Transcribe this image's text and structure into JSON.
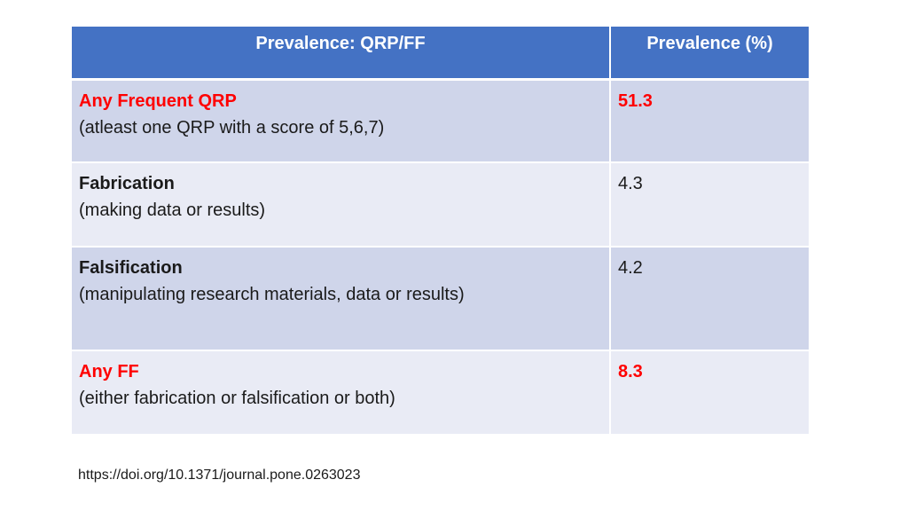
{
  "table": {
    "headers": [
      "Prevalence: QRP/FF",
      "Prevalence (%)"
    ],
    "rows": [
      {
        "title": "Any Frequent QRP",
        "description": "(atleast one QRP with a score of 5,6,7)",
        "value": "51.3",
        "highlight_color": "#ff0000"
      },
      {
        "title": "Fabrication",
        "description": "(making data or results)",
        "value": "4.3"
      },
      {
        "title": "Falsification",
        "description": "(manipulating research materials, data or results)",
        "value": "4.2"
      },
      {
        "title": "Any FF",
        "description": "(either fabrication or falsification or both)",
        "value": "8.3",
        "highlight_color": "#ff0000"
      }
    ]
  },
  "colors": {
    "header_bg": "#4472c4",
    "row_odd_bg": "#cfd5ea",
    "row_even_bg": "#e9ebf5",
    "highlight": "#ff0000"
  },
  "source_link": "https://doi.org/10.1371/journal.pone.0263023"
}
